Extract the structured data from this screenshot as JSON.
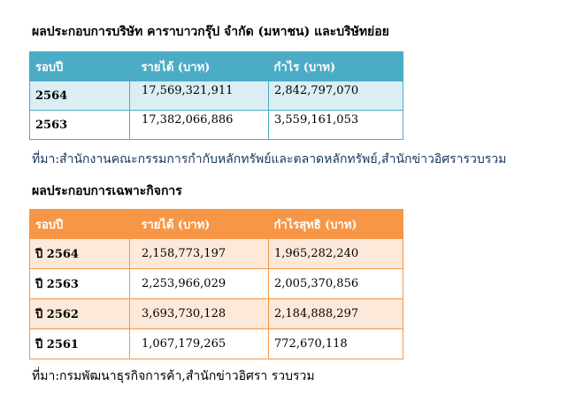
{
  "section1": {
    "title": "ผลประกอบการบริษัท คาราบาวกรุ๊ป จำกัด (มหาชน) และบริษัทย่อย",
    "headers": [
      "รอบปี",
      "รายได้  (บาท)",
      "กำไร  (บาท)"
    ],
    "rows": [
      [
        "2564",
        "17,569,321,911",
        "2,842,797,070"
      ],
      [
        "2563",
        "17,382,066,886",
        "3,559,161,053"
      ]
    ],
    "source": "ที่มา:สำนักงานคณะกรรมการกำกับหลักทรัพย์และตลาดหลักทรัพย์,สำนักข่าวอิศรารวบรวม"
  },
  "section2": {
    "title": "ผลประกอบการเฉพาะกิจการ",
    "headers": [
      "รอบปี",
      "รายได้  (บาท)",
      "กำไรสุทธิ (บาท)"
    ],
    "rows": [
      [
        "ปี 2564",
        "2,158,773,197",
        "1,965,282,240"
      ],
      [
        "ปี 2563",
        "2,253,966,029",
        "2,005,370,856"
      ],
      [
        "ปี 2562",
        "3,693,730,128",
        "2,184,888,297"
      ],
      [
        "ปี 2561",
        "1,067,179,265",
        "772,670,118"
      ]
    ],
    "source": "ที่มา:กรมพัฒนาธุรกิจการค้า,สำนักข่าวอิศรา  รวบรวม"
  },
  "colors": {
    "table1_header": "#4bacc6",
    "table1_band": "#daeef3",
    "table2_header": "#f79646",
    "table2_band": "#fde9d9",
    "source1_text": "#17365d"
  }
}
